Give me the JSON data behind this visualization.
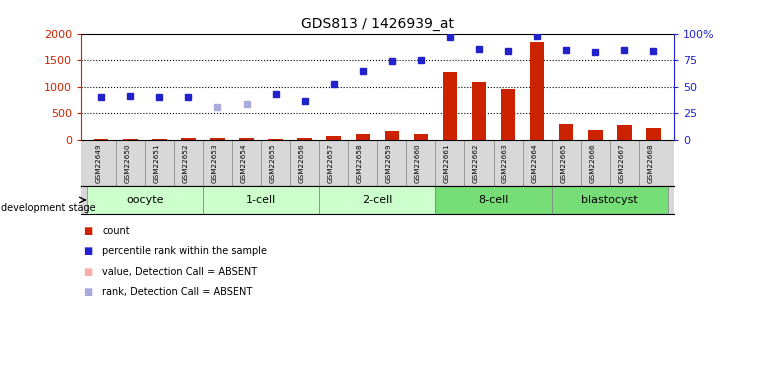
{
  "title": "GDS813 / 1426939_at",
  "samples": [
    "GSM22649",
    "GSM22650",
    "GSM22651",
    "GSM22652",
    "GSM22653",
    "GSM22654",
    "GSM22655",
    "GSM22656",
    "GSM22657",
    "GSM22658",
    "GSM22659",
    "GSM22660",
    "GSM22661",
    "GSM22662",
    "GSM22663",
    "GSM22664",
    "GSM22665",
    "GSM22666",
    "GSM22667",
    "GSM22668"
  ],
  "count_values": [
    20,
    15,
    18,
    30,
    25,
    22,
    20,
    30,
    60,
    100,
    160,
    110,
    1270,
    1095,
    960,
    1840,
    295,
    190,
    270,
    215
  ],
  "rank_values": [
    800,
    815,
    810,
    810,
    null,
    null,
    870,
    725,
    1060,
    1295,
    1490,
    1500,
    null,
    null,
    null,
    null,
    null,
    null,
    null,
    null
  ],
  "rank_absent_values": [
    null,
    null,
    null,
    null,
    625,
    680,
    null,
    null,
    null,
    null,
    null,
    null,
    null,
    null,
    null,
    null,
    null,
    null,
    null,
    null
  ],
  "blue_rank_values": [
    null,
    null,
    null,
    null,
    null,
    null,
    null,
    null,
    null,
    null,
    null,
    null,
    97,
    86,
    84,
    98,
    85,
    83,
    85,
    84
  ],
  "stages": [
    {
      "label": "oocyte",
      "start": 0,
      "end": 3,
      "color": "#ccffcc"
    },
    {
      "label": "1-cell",
      "start": 4,
      "end": 7,
      "color": "#ccffcc"
    },
    {
      "label": "2-cell",
      "start": 8,
      "end": 11,
      "color": "#ccffcc"
    },
    {
      "label": "8-cell",
      "start": 12,
      "end": 15,
      "color": "#77dd77"
    },
    {
      "label": "blastocyst",
      "start": 16,
      "end": 19,
      "color": "#77dd77"
    }
  ],
  "ylim_left": [
    0,
    2000
  ],
  "ylim_right": [
    0,
    100
  ],
  "yticks_left": [
    0,
    500,
    1000,
    1500,
    2000
  ],
  "yticks_right": [
    0,
    25,
    50,
    75,
    100
  ],
  "ytick_labels_right": [
    "0",
    "25",
    "50",
    "75",
    "100%"
  ],
  "count_color": "#cc2200",
  "rank_color": "#2222cc",
  "rank_absent_color": "#aaaadd",
  "value_absent_color": "#ffaaaa",
  "bg_color": "#ffffff"
}
